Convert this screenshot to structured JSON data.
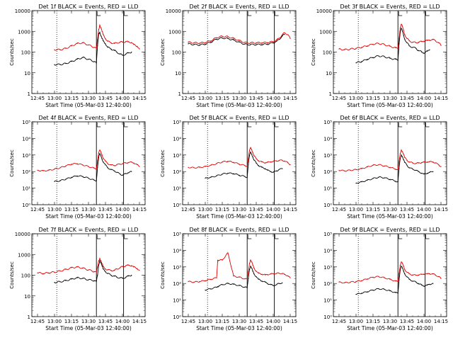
{
  "figure": {
    "layout": "3x3 grid",
    "background": "#ffffff",
    "series_colors": {
      "events": "#000000",
      "lld": "#e00000"
    },
    "x_axis": {
      "label": "Start Time (05-Mar-03 12:40:00)",
      "tick_labels": [
        "12:45",
        "13:00",
        "13:15",
        "13:30",
        "13:45",
        "14:00",
        "14:15"
      ],
      "tick_minutes": [
        5,
        20,
        35,
        50,
        65,
        80,
        95
      ],
      "range_minutes": [
        0,
        100
      ]
    },
    "y_label": "Counts/sec",
    "dotted_line_minutes": 22,
    "solid_line_minutes": [
      57,
      81
    ]
  },
  "chart_data": [
    {
      "id": "1f",
      "type": "line",
      "title": "Det 1f BLACK = Events, RED = LLD",
      "ylim": [
        1,
        10000
      ],
      "ytick_labels": [
        "1",
        "10",
        "100",
        "1000",
        "10000"
      ],
      "x": [
        5,
        10,
        15,
        20,
        25,
        30,
        35,
        40,
        45,
        50,
        55,
        57,
        58,
        59,
        60,
        61,
        62,
        63,
        65,
        67,
        70,
        73,
        75,
        78,
        80,
        83,
        85,
        88,
        90,
        93,
        95
      ],
      "series": [
        {
          "name": "Events",
          "color": "#000000",
          "values": [
            null,
            null,
            null,
            25,
            25,
            28,
            35,
            45,
            55,
            45,
            35,
            30,
            200,
            800,
            900,
            600,
            450,
            350,
            250,
            170,
            140,
            120,
            100,
            80,
            70,
            80,
            90,
            100,
            null,
            null,
            null
          ]
        },
        {
          "name": "LLD",
          "color": "#e00000",
          "values": [
            null,
            null,
            null,
            130,
            130,
            150,
            200,
            260,
            280,
            220,
            170,
            150,
            400,
            1200,
            2000,
            1500,
            1000,
            700,
            450,
            330,
            280,
            260,
            280,
            300,
            300,
            320,
            310,
            290,
            230,
            190,
            140
          ]
        }
      ]
    },
    {
      "id": "2f",
      "type": "line",
      "title": "Det 2f BLACK = Events, RED = LLD",
      "ylim": [
        1,
        10000
      ],
      "ytick_labels": [
        "1",
        "10",
        "100",
        "1000",
        "10000"
      ],
      "x": [
        5,
        10,
        15,
        20,
        25,
        30,
        35,
        40,
        45,
        50,
        55,
        57,
        60,
        65,
        70,
        75,
        80,
        83,
        85,
        88,
        90,
        93,
        95
      ],
      "series": [
        {
          "name": "Events",
          "color": "#000000",
          "values": [
            250,
            230,
            220,
            240,
            300,
            420,
            480,
            450,
            380,
            300,
            240,
            230,
            230,
            230,
            230,
            240,
            280,
            330,
            400,
            600,
            700,
            null,
            null
          ]
        },
        {
          "name": "LLD",
          "color": "#e00000",
          "values": [
            300,
            280,
            270,
            290,
            350,
            500,
            580,
            550,
            460,
            360,
            290,
            280,
            280,
            280,
            280,
            290,
            320,
            380,
            460,
            680,
            850,
            700,
            450
          ]
        }
      ]
    },
    {
      "id": "3f",
      "type": "line",
      "title": "Det 3f BLACK = Events, RED = LLD",
      "ylim": [
        1,
        10000
      ],
      "ytick_labels": [
        "1",
        "10",
        "100",
        "1000",
        "10000"
      ],
      "x": [
        5,
        10,
        15,
        20,
        25,
        30,
        35,
        40,
        45,
        50,
        55,
        57,
        58,
        59,
        60,
        61,
        62,
        63,
        65,
        67,
        70,
        73,
        75,
        78,
        80,
        83,
        85,
        88,
        90,
        93,
        95
      ],
      "series": [
        {
          "name": "Events",
          "color": "#000000",
          "values": [
            null,
            null,
            null,
            30,
            35,
            45,
            55,
            65,
            60,
            50,
            45,
            40,
            250,
            900,
            1400,
            1000,
            650,
            420,
            280,
            200,
            170,
            150,
            120,
            100,
            90,
            110,
            130,
            null,
            null,
            null,
            null
          ]
        },
        {
          "name": "LLD",
          "color": "#e00000",
          "values": [
            140,
            130,
            140,
            150,
            170,
            200,
            240,
            260,
            230,
            190,
            160,
            150,
            450,
            1400,
            2200,
            1700,
            1100,
            700,
            450,
            350,
            300,
            280,
            300,
            320,
            340,
            360,
            380,
            400,
            360,
            280,
            210
          ]
        }
      ]
    },
    {
      "id": "4f",
      "type": "line",
      "title": "Det 4f BLACK = Events, RED = LLD",
      "ylim": [
        1,
        100000
      ],
      "ytick_labels": [
        "10⁰",
        "10¹",
        "10²",
        "10³",
        "10⁴",
        "10⁵"
      ],
      "x": [
        5,
        10,
        15,
        20,
        25,
        30,
        35,
        40,
        45,
        50,
        55,
        57,
        58,
        59,
        60,
        61,
        62,
        63,
        65,
        67,
        70,
        73,
        75,
        78,
        80,
        83,
        85,
        88,
        90,
        93,
        95
      ],
      "series": [
        {
          "name": "Events",
          "color": "#000000",
          "values": [
            null,
            null,
            null,
            25,
            28,
            35,
            45,
            55,
            50,
            40,
            30,
            28,
            180,
            700,
            1200,
            900,
            550,
            380,
            250,
            170,
            130,
            110,
            90,
            70,
            60,
            75,
            85,
            100,
            null,
            null,
            null
          ]
        },
        {
          "name": "LLD",
          "color": "#e00000",
          "values": [
            120,
            110,
            120,
            140,
            170,
            220,
            280,
            300,
            250,
            200,
            160,
            150,
            450,
            1300,
            2000,
            1500,
            1000,
            650,
            420,
            300,
            250,
            230,
            260,
            280,
            300,
            330,
            350,
            370,
            330,
            260,
            200
          ]
        }
      ]
    },
    {
      "id": "5f",
      "type": "line",
      "title": "Det 5f BLACK = Events, RED = LLD",
      "ylim": [
        1,
        100000
      ],
      "ytick_labels": [
        "10⁰",
        "10¹",
        "10²",
        "10³",
        "10⁴",
        "10⁵"
      ],
      "x": [
        5,
        10,
        15,
        20,
        25,
        30,
        35,
        40,
        45,
        50,
        55,
        57,
        58,
        59,
        60,
        61,
        62,
        63,
        65,
        67,
        70,
        73,
        75,
        78,
        80,
        83,
        85,
        88,
        90,
        93,
        95
      ],
      "series": [
        {
          "name": "Events",
          "color": "#000000",
          "values": [
            null,
            null,
            null,
            40,
            45,
            55,
            70,
            80,
            75,
            60,
            50,
            45,
            250,
            900,
            1500,
            1100,
            750,
            500,
            330,
            230,
            180,
            150,
            120,
            100,
            90,
            110,
            130,
            150,
            null,
            null,
            null
          ]
        },
        {
          "name": "LLD",
          "color": "#e00000",
          "values": [
            180,
            170,
            180,
            200,
            240,
            300,
            380,
            420,
            360,
            280,
            230,
            210,
            600,
            1800,
            2800,
            2100,
            1400,
            900,
            600,
            450,
            380,
            340,
            360,
            390,
            410,
            440,
            460,
            480,
            430,
            340,
            260
          ]
        }
      ]
    },
    {
      "id": "6f",
      "type": "line",
      "title": "Det 6f BLACK = Events, RED = LLD",
      "ylim": [
        1,
        100000
      ],
      "ytick_labels": [
        "10⁰",
        "10¹",
        "10²",
        "10³",
        "10⁴",
        "10⁵"
      ],
      "x": [
        5,
        10,
        15,
        20,
        25,
        30,
        35,
        40,
        45,
        50,
        55,
        57,
        58,
        59,
        60,
        61,
        62,
        63,
        65,
        67,
        70,
        73,
        75,
        78,
        80,
        83,
        85,
        88,
        90,
        93,
        95
      ],
      "series": [
        {
          "name": "Events",
          "color": "#000000",
          "values": [
            null,
            null,
            null,
            20,
            24,
            30,
            38,
            46,
            42,
            34,
            26,
            24,
            150,
            600,
            1000,
            800,
            520,
            360,
            240,
            170,
            140,
            120,
            100,
            80,
            70,
            80,
            90,
            100,
            null,
            null,
            null
          ]
        },
        {
          "name": "LLD",
          "color": "#e00000",
          "values": [
            120,
            110,
            120,
            130,
            150,
            190,
            240,
            260,
            220,
            180,
            140,
            130,
            400,
            1200,
            2000,
            1600,
            1100,
            700,
            480,
            380,
            330,
            310,
            330,
            350,
            370,
            380,
            390,
            380,
            330,
            260,
            200
          ]
        }
      ]
    },
    {
      "id": "7f",
      "type": "line",
      "title": "Det 7f BLACK = Events, RED = LLD",
      "ylim": [
        1,
        10000
      ],
      "ytick_labels": [
        "1",
        "10",
        "100",
        "1000",
        "10000"
      ],
      "x": [
        5,
        10,
        15,
        20,
        25,
        30,
        35,
        40,
        45,
        50,
        55,
        57,
        58,
        59,
        60,
        61,
        62,
        63,
        65,
        67,
        70,
        73,
        75,
        78,
        80,
        83,
        85,
        88,
        90,
        93,
        95
      ],
      "series": [
        {
          "name": "Events",
          "color": "#000000",
          "values": [
            null,
            null,
            null,
            45,
            48,
            55,
            65,
            75,
            70,
            60,
            55,
            50,
            100,
            300,
            500,
            400,
            280,
            200,
            150,
            120,
            100,
            90,
            80,
            75,
            70,
            80,
            90,
            100,
            null,
            null,
            null
          ]
        },
        {
          "name": "LLD",
          "color": "#e00000",
          "values": [
            130,
            120,
            130,
            140,
            160,
            190,
            230,
            250,
            220,
            180,
            150,
            140,
            250,
            500,
            650,
            500,
            350,
            260,
            200,
            180,
            170,
            170,
            200,
            230,
            260,
            290,
            300,
            290,
            250,
            210,
            170
          ]
        }
      ]
    },
    {
      "id": "8f",
      "type": "line",
      "title": "Det 8f BLACK = Events, RED = LLD",
      "ylim": [
        1,
        100000
      ],
      "ytick_labels": [
        "10⁰",
        "10¹",
        "10²",
        "10³",
        "10⁴",
        "10⁵"
      ],
      "x": [
        5,
        10,
        15,
        20,
        25,
        30,
        31,
        32,
        35,
        40,
        45,
        50,
        55,
        57,
        58,
        59,
        60,
        61,
        62,
        63,
        65,
        67,
        70,
        73,
        75,
        78,
        80,
        83,
        85,
        88,
        90,
        93,
        95
      ],
      "series": [
        {
          "name": "Events",
          "color": "#000000",
          "values": [
            null,
            null,
            null,
            40,
            48,
            60,
            65,
            70,
            85,
            100,
            90,
            75,
            60,
            55,
            200,
            700,
            1100,
            850,
            550,
            380,
            260,
            180,
            140,
            120,
            100,
            85,
            75,
            85,
            100,
            110,
            null,
            null,
            null
          ]
        },
        {
          "name": "LLD",
          "color": "#e00000",
          "values": [
            130,
            120,
            130,
            150,
            180,
            220,
            2500,
            2500,
            2600,
            7000,
            280,
            240,
            190,
            180,
            500,
            1600,
            2600,
            2000,
            1300,
            850,
            550,
            420,
            360,
            330,
            350,
            370,
            390,
            400,
            420,
            400,
            350,
            290,
            220
          ]
        }
      ]
    },
    {
      "id": "9f",
      "type": "line",
      "title": "Det 9f BLACK = Events, RED = LLD",
      "ylim": [
        1,
        100000
      ],
      "ytick_labels": [
        "10⁰",
        "10¹",
        "10²",
        "10³",
        "10⁴",
        "10⁵"
      ],
      "x": [
        5,
        10,
        15,
        20,
        25,
        30,
        35,
        40,
        45,
        50,
        55,
        57,
        58,
        59,
        60,
        61,
        62,
        63,
        65,
        67,
        70,
        73,
        75,
        78,
        80,
        83,
        85,
        88,
        90,
        93,
        95
      ],
      "series": [
        {
          "name": "Events",
          "color": "#000000",
          "values": [
            null,
            null,
            null,
            22,
            26,
            32,
            40,
            48,
            44,
            36,
            28,
            26,
            160,
            650,
            1100,
            850,
            560,
            380,
            250,
            180,
            140,
            120,
            100,
            80,
            70,
            80,
            90,
            100,
            null,
            null,
            null
          ]
        },
        {
          "name": "LLD",
          "color": "#e00000",
          "values": [
            120,
            110,
            120,
            130,
            150,
            190,
            240,
            260,
            220,
            180,
            140,
            130,
            400,
            1200,
            2000,
            1600,
            1100,
            700,
            480,
            380,
            330,
            310,
            330,
            350,
            370,
            380,
            390,
            380,
            330,
            260,
            200
          ]
        }
      ]
    }
  ]
}
